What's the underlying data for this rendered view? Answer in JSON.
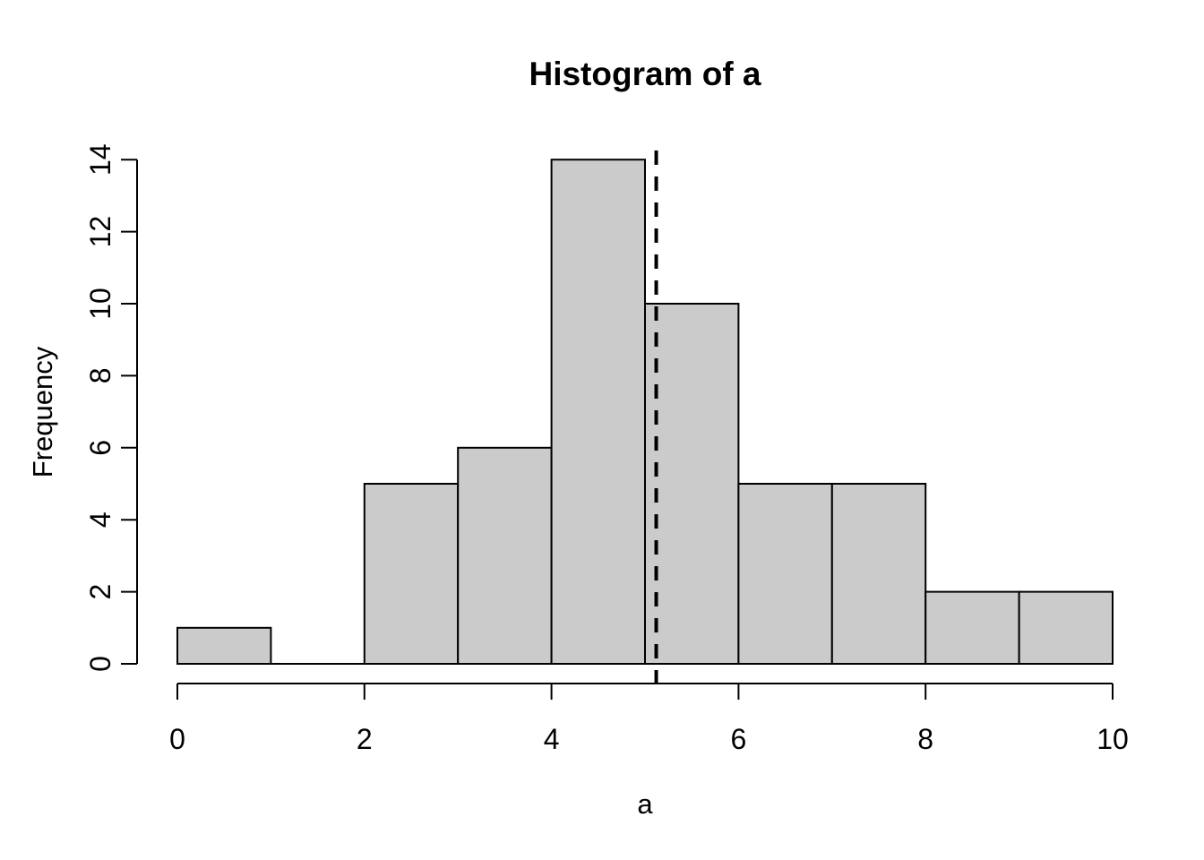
{
  "chart_data": {
    "type": "histogram",
    "title": "Histogram of a",
    "xlabel": "a",
    "ylabel": "Frequency",
    "breaks": [
      0,
      1,
      2,
      3,
      4,
      5,
      6,
      7,
      8,
      9,
      10
    ],
    "counts": [
      1,
      0,
      5,
      6,
      14,
      10,
      5,
      5,
      2,
      2
    ],
    "xlim": [
      0,
      10
    ],
    "ylim": [
      0,
      14
    ],
    "x_ticks": [
      0,
      2,
      4,
      6,
      8,
      10
    ],
    "y_ticks": [
      0,
      2,
      4,
      6,
      8,
      10,
      12,
      14
    ],
    "vline": {
      "x": 5.12,
      "style": "dashed",
      "color": "#000000"
    },
    "bar_fill": "#CBCBCB",
    "bar_border": "#000000",
    "axis_color": "#000000",
    "background": "#FFFFFF",
    "grid": "off",
    "legend": "none"
  }
}
